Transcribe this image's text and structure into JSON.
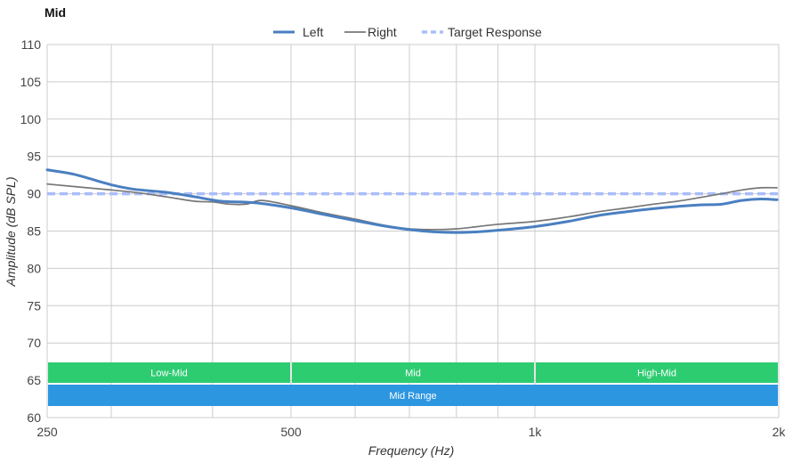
{
  "chart_data": {
    "type": "line",
    "title": "Mid",
    "xlabel": "Frequency (Hz)",
    "ylabel": "Amplitude (dB SPL)",
    "xscale": "log",
    "xlim": [
      250,
      2000
    ],
    "ylim": [
      60,
      110
    ],
    "xticks": [
      {
        "value": 250,
        "label": "250"
      },
      {
        "value": 500,
        "label": "500"
      },
      {
        "value": 1000,
        "label": "1k"
      },
      {
        "value": 2000,
        "label": "2k"
      }
    ],
    "yticks": [
      60,
      65,
      70,
      75,
      80,
      85,
      90,
      95,
      100,
      105,
      110
    ],
    "grid": true,
    "legend_position": "top-center",
    "series": [
      {
        "name": "Left",
        "color": "#4a7fc1",
        "style": "solid-thick",
        "points": [
          [
            250,
            93.2
          ],
          [
            270,
            92.6
          ],
          [
            300,
            91.2
          ],
          [
            320,
            90.6
          ],
          [
            350,
            90.2
          ],
          [
            380,
            89.6
          ],
          [
            410,
            89.0
          ],
          [
            450,
            88.8
          ],
          [
            500,
            88.1
          ],
          [
            550,
            87.2
          ],
          [
            600,
            86.4
          ],
          [
            650,
            85.7
          ],
          [
            700,
            85.2
          ],
          [
            750,
            84.9
          ],
          [
            800,
            84.8
          ],
          [
            850,
            84.9
          ],
          [
            900,
            85.1
          ],
          [
            1000,
            85.6
          ],
          [
            1100,
            86.3
          ],
          [
            1200,
            87.1
          ],
          [
            1300,
            87.6
          ],
          [
            1400,
            88.0
          ],
          [
            1500,
            88.3
          ],
          [
            1600,
            88.5
          ],
          [
            1700,
            88.6
          ],
          [
            1800,
            89.1
          ],
          [
            1900,
            89.3
          ],
          [
            1990,
            89.2
          ]
        ]
      },
      {
        "name": "Right",
        "color": "#777777",
        "style": "solid-thin",
        "points": [
          [
            250,
            91.3
          ],
          [
            280,
            90.8
          ],
          [
            320,
            90.2
          ],
          [
            350,
            89.6
          ],
          [
            380,
            89.0
          ],
          [
            400,
            88.9
          ],
          [
            420,
            88.6
          ],
          [
            440,
            88.6
          ],
          [
            460,
            89.1
          ],
          [
            500,
            88.4
          ],
          [
            550,
            87.4
          ],
          [
            600,
            86.6
          ],
          [
            650,
            85.8
          ],
          [
            700,
            85.3
          ],
          [
            750,
            85.2
          ],
          [
            800,
            85.3
          ],
          [
            850,
            85.6
          ],
          [
            900,
            85.9
          ],
          [
            1000,
            86.3
          ],
          [
            1100,
            86.9
          ],
          [
            1200,
            87.6
          ],
          [
            1300,
            88.1
          ],
          [
            1400,
            88.6
          ],
          [
            1500,
            89.0
          ],
          [
            1600,
            89.5
          ],
          [
            1700,
            90.0
          ],
          [
            1800,
            90.5
          ],
          [
            1900,
            90.8
          ],
          [
            1990,
            90.8
          ]
        ]
      },
      {
        "name": "Target Response",
        "color": "#aabdfc",
        "style": "dashed",
        "points": [
          [
            250,
            90
          ],
          [
            2000,
            90
          ]
        ]
      }
    ],
    "bands": [
      {
        "label": "Low-Mid",
        "from": 250,
        "to": 500,
        "row": 1,
        "color": "#2ecc71"
      },
      {
        "label": "Mid",
        "from": 500,
        "to": 1000,
        "row": 1,
        "color": "#2ecc71"
      },
      {
        "label": "High-Mid",
        "from": 1000,
        "to": 2000,
        "row": 1,
        "color": "#2ecc71"
      },
      {
        "label": "Mid Range",
        "from": 250,
        "to": 2000,
        "row": 2,
        "color": "#2d96e0"
      }
    ]
  }
}
